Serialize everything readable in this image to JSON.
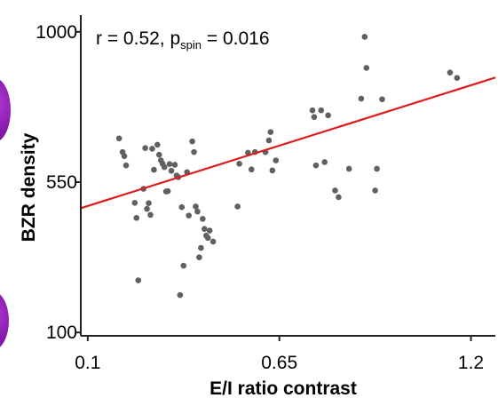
{
  "chart_data": {
    "type": "scatter",
    "title": "",
    "annotation": {
      "r_text": "r = 0.52, p",
      "p_sub": "spin",
      "p_rest": " = 0.016"
    },
    "xlabel": "E/I ratio contrast",
    "ylabel": "BZR density",
    "xlim": [
      0.08,
      1.27
    ],
    "ylim": [
      90,
      1050
    ],
    "xticks": [
      0.1,
      0.65,
      1.2
    ],
    "xtick_labels": [
      "0.1",
      "0.65",
      "1.2"
    ],
    "yticks": [
      100,
      550,
      1000
    ],
    "ytick_labels": [
      "100",
      "550",
      "1000"
    ],
    "grid": false,
    "point_color": "#606060",
    "line_color": "#e0191a",
    "fit_line": {
      "x": [
        0.08,
        1.27
      ],
      "y": [
        472,
        863
      ]
    },
    "points": [
      {
        "x": 0.19,
        "y": 681
      },
      {
        "x": 0.2,
        "y": 640
      },
      {
        "x": 0.205,
        "y": 628
      },
      {
        "x": 0.21,
        "y": 600
      },
      {
        "x": 0.235,
        "y": 488
      },
      {
        "x": 0.24,
        "y": 443
      },
      {
        "x": 0.245,
        "y": 256
      },
      {
        "x": 0.26,
        "y": 530
      },
      {
        "x": 0.265,
        "y": 652
      },
      {
        "x": 0.27,
        "y": 470
      },
      {
        "x": 0.275,
        "y": 487
      },
      {
        "x": 0.28,
        "y": 452
      },
      {
        "x": 0.285,
        "y": 650
      },
      {
        "x": 0.29,
        "y": 587
      },
      {
        "x": 0.3,
        "y": 662
      },
      {
        "x": 0.305,
        "y": 632
      },
      {
        "x": 0.31,
        "y": 615
      },
      {
        "x": 0.315,
        "y": 605
      },
      {
        "x": 0.32,
        "y": 595
      },
      {
        "x": 0.325,
        "y": 522
      },
      {
        "x": 0.33,
        "y": 523
      },
      {
        "x": 0.335,
        "y": 604
      },
      {
        "x": 0.34,
        "y": 584
      },
      {
        "x": 0.35,
        "y": 602
      },
      {
        "x": 0.355,
        "y": 570
      },
      {
        "x": 0.36,
        "y": 565
      },
      {
        "x": 0.365,
        "y": 212
      },
      {
        "x": 0.37,
        "y": 475
      },
      {
        "x": 0.375,
        "y": 300
      },
      {
        "x": 0.385,
        "y": 580
      },
      {
        "x": 0.39,
        "y": 450
      },
      {
        "x": 0.4,
        "y": 672
      },
      {
        "x": 0.405,
        "y": 640
      },
      {
        "x": 0.41,
        "y": 477
      },
      {
        "x": 0.415,
        "y": 462
      },
      {
        "x": 0.42,
        "y": 325
      },
      {
        "x": 0.425,
        "y": 353
      },
      {
        "x": 0.43,
        "y": 440
      },
      {
        "x": 0.435,
        "y": 410
      },
      {
        "x": 0.44,
        "y": 390
      },
      {
        "x": 0.445,
        "y": 383
      },
      {
        "x": 0.45,
        "y": 405
      },
      {
        "x": 0.46,
        "y": 372
      },
      {
        "x": 0.53,
        "y": 477
      },
      {
        "x": 0.535,
        "y": 605
      },
      {
        "x": 0.56,
        "y": 638
      },
      {
        "x": 0.57,
        "y": 588
      },
      {
        "x": 0.58,
        "y": 640
      },
      {
        "x": 0.61,
        "y": 640
      },
      {
        "x": 0.62,
        "y": 675
      },
      {
        "x": 0.625,
        "y": 700
      },
      {
        "x": 0.63,
        "y": 585
      },
      {
        "x": 0.64,
        "y": 615
      },
      {
        "x": 0.745,
        "y": 765
      },
      {
        "x": 0.75,
        "y": 745
      },
      {
        "x": 0.755,
        "y": 600
      },
      {
        "x": 0.77,
        "y": 765
      },
      {
        "x": 0.78,
        "y": 610
      },
      {
        "x": 0.79,
        "y": 750
      },
      {
        "x": 0.81,
        "y": 525
      },
      {
        "x": 0.82,
        "y": 505
      },
      {
        "x": 0.85,
        "y": 590
      },
      {
        "x": 0.885,
        "y": 800
      },
      {
        "x": 0.895,
        "y": 985
      },
      {
        "x": 0.9,
        "y": 892
      },
      {
        "x": 0.925,
        "y": 525
      },
      {
        "x": 0.93,
        "y": 590
      },
      {
        "x": 0.945,
        "y": 798
      },
      {
        "x": 1.14,
        "y": 878
      },
      {
        "x": 1.16,
        "y": 862
      }
    ]
  }
}
